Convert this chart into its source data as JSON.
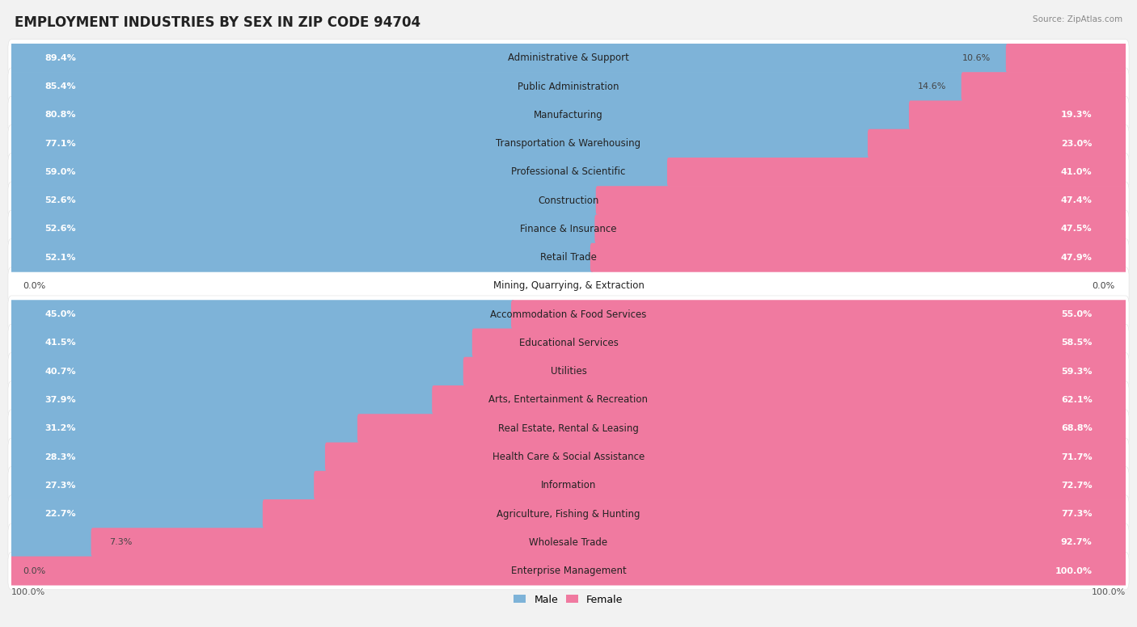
{
  "title": "EMPLOYMENT INDUSTRIES BY SEX IN ZIP CODE 94704",
  "source": "Source: ZipAtlas.com",
  "categories": [
    "Administrative & Support",
    "Public Administration",
    "Manufacturing",
    "Transportation & Warehousing",
    "Professional & Scientific",
    "Construction",
    "Finance & Insurance",
    "Retail Trade",
    "Mining, Quarrying, & Extraction",
    "Accommodation & Food Services",
    "Educational Services",
    "Utilities",
    "Arts, Entertainment & Recreation",
    "Real Estate, Rental & Leasing",
    "Health Care & Social Assistance",
    "Information",
    "Agriculture, Fishing & Hunting",
    "Wholesale Trade",
    "Enterprise Management"
  ],
  "male": [
    89.4,
    85.4,
    80.8,
    77.1,
    59.0,
    52.6,
    52.6,
    52.1,
    0.0,
    45.0,
    41.5,
    40.7,
    37.9,
    31.2,
    28.3,
    27.3,
    22.7,
    7.3,
    0.0
  ],
  "female": [
    10.6,
    14.6,
    19.3,
    23.0,
    41.0,
    47.4,
    47.5,
    47.9,
    0.0,
    55.0,
    58.5,
    59.3,
    62.1,
    68.8,
    71.7,
    72.7,
    77.3,
    92.7,
    100.0
  ],
  "male_color": "#7eb3d8",
  "female_color": "#f07aa0",
  "bg_color": "#f2f2f2",
  "row_bg_color": "#ffffff",
  "title_fontsize": 12,
  "label_fontsize": 8.5,
  "pct_fontsize": 8.0,
  "legend_fontsize": 9
}
